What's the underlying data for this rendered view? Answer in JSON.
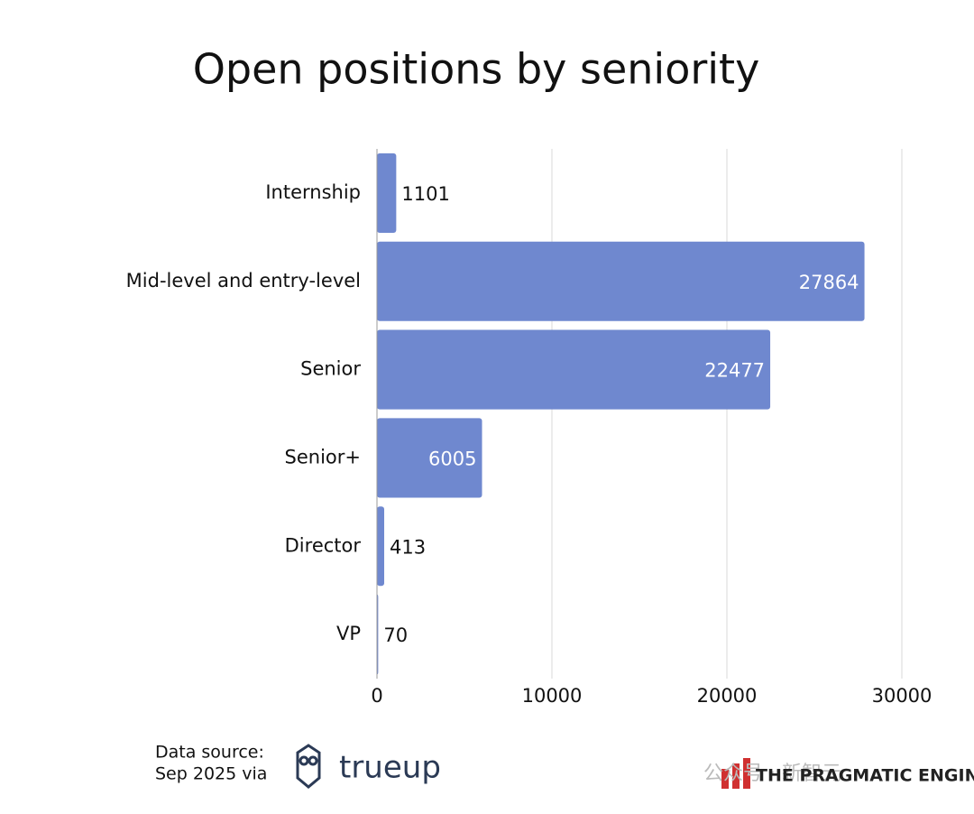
{
  "chart_data": {
    "type": "hbar",
    "title": "Open positions by seniority",
    "categories": [
      "Internship",
      "Mid-level and entry-level",
      "Senior",
      "Senior+",
      "Director",
      "VP"
    ],
    "values": [
      1101,
      27864,
      22477,
      6005,
      413,
      70
    ],
    "color": "#6f88cf",
    "xlim": [
      0,
      30000
    ],
    "xticks": [
      0,
      10000,
      20000,
      30000
    ],
    "grid": true,
    "source": [
      "Data source:",
      "Sep 2025 via"
    ],
    "logo": "trueup",
    "brand": "THE PRAGMATIC ENGINEER",
    "watermark": "公众号 · 新智元"
  }
}
